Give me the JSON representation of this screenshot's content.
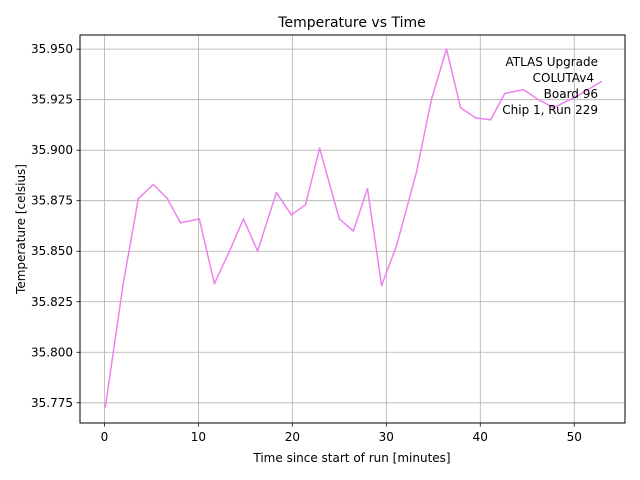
{
  "chart_data": {
    "type": "line",
    "title": "Temperature vs Time",
    "xlabel": "Time since start of run [minutes]",
    "ylabel": "Temperature [celsius]",
    "xlim": [
      -2.6,
      55.4
    ],
    "ylim": [
      35.765,
      35.957
    ],
    "xticks": [
      0,
      10,
      20,
      30,
      40,
      50
    ],
    "yticks": [
      35.775,
      35.8,
      35.825,
      35.85,
      35.875,
      35.9,
      35.925,
      35.95
    ],
    "ytick_labels": [
      "35.775",
      "35.800",
      "35.825",
      "35.850",
      "35.875",
      "35.900",
      "35.925",
      "35.950"
    ],
    "grid": true,
    "annotation": [
      "ATLAS Upgrade",
      "COLUTAv4",
      "Board 96",
      "Chip 1, Run 229"
    ],
    "annotation_position": "top-right",
    "series": [
      {
        "name": "temperature",
        "color": "#ee82ee",
        "x": [
          0.1,
          2.0,
          3.6,
          5.2,
          6.7,
          8.1,
          10.1,
          11.7,
          13.2,
          14.8,
          16.3,
          18.3,
          19.9,
          21.4,
          22.9,
          25.0,
          26.5,
          28.0,
          29.5,
          31.1,
          33.2,
          34.8,
          36.4,
          37.9,
          39.5,
          41.1,
          42.6,
          44.6,
          46.2,
          47.8,
          50.4,
          52.9
        ],
        "values": [
          35.773,
          35.834,
          35.876,
          35.883,
          35.876,
          35.864,
          35.866,
          35.834,
          35.849,
          35.866,
          35.85,
          35.879,
          35.868,
          35.873,
          35.901,
          35.866,
          35.86,
          35.881,
          35.833,
          35.853,
          35.889,
          35.925,
          35.95,
          35.921,
          35.916,
          35.915,
          35.928,
          35.93,
          35.925,
          35.921,
          35.927,
          35.934
        ]
      }
    ]
  }
}
